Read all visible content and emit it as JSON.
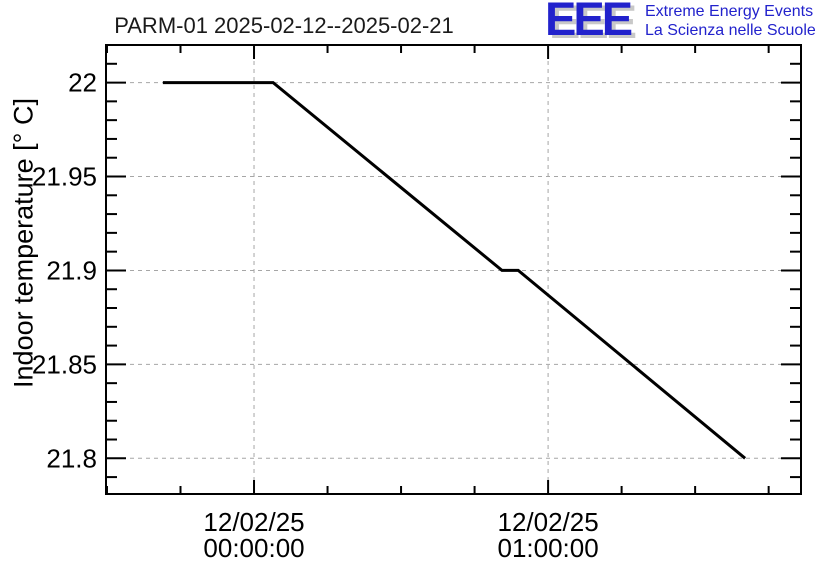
{
  "chart_title": "PARM-01 2025-02-12--2025-02-21",
  "logo": {
    "acronym": "EEE",
    "tagline_line1": "Extreme Energy Events",
    "tagline_line2": "La Scienza nelle Scuole",
    "blue": "#2222cc",
    "shadow": "#c8c8c8"
  },
  "chart_data": {
    "type": "line",
    "title": "PARM-01 2025-02-12--2025-02-21",
    "station": "PARM-01",
    "date_range": "2025-02-12--2025-02-21",
    "ylabel": "Indoor temperature [° C]",
    "xlabel": "",
    "line_color": "#000000",
    "grid_color": "#a6a6a6",
    "grid_on": true,
    "legend": "none",
    "series": [
      {
        "name": "indoor-temperature",
        "points": [
          {
            "t_min": -18.6,
            "time": "11/02/25 23:41",
            "temp_c": 22.0
          },
          {
            "t_min": 3.9,
            "time": "12/02/25 00:04",
            "temp_c": 22.0
          },
          {
            "t_min": 50.6,
            "time": "12/02/25 00:51",
            "temp_c": 21.9
          },
          {
            "t_min": 53.9,
            "time": "12/02/25 00:54",
            "temp_c": 21.9
          },
          {
            "t_min": 100.2,
            "time": "12/02/25 01:40",
            "temp_c": 21.8
          }
        ]
      }
    ],
    "x_axis": {
      "unit": "minutes since 12/02/25 00:00:00",
      "lim": [
        -30.2,
        111.6
      ],
      "major_ticks": [
        {
          "t_min": 0,
          "label_line1": "12/02/25",
          "label_line2": "00:00:00"
        },
        {
          "t_min": 60,
          "label_line1": "12/02/25",
          "label_line2": "01:00:00"
        }
      ],
      "minor_step_min": 15
    },
    "y_axis": {
      "lim": [
        21.781,
        22.02
      ],
      "major_ticks": [
        {
          "value": 22.0,
          "label": "22"
        },
        {
          "value": 21.95,
          "label": "21.95"
        },
        {
          "value": 21.9,
          "label": "21.9"
        },
        {
          "value": 21.85,
          "label": "21.85"
        },
        {
          "value": 21.8,
          "label": "21.8"
        }
      ],
      "minor_step": 0.01
    }
  }
}
